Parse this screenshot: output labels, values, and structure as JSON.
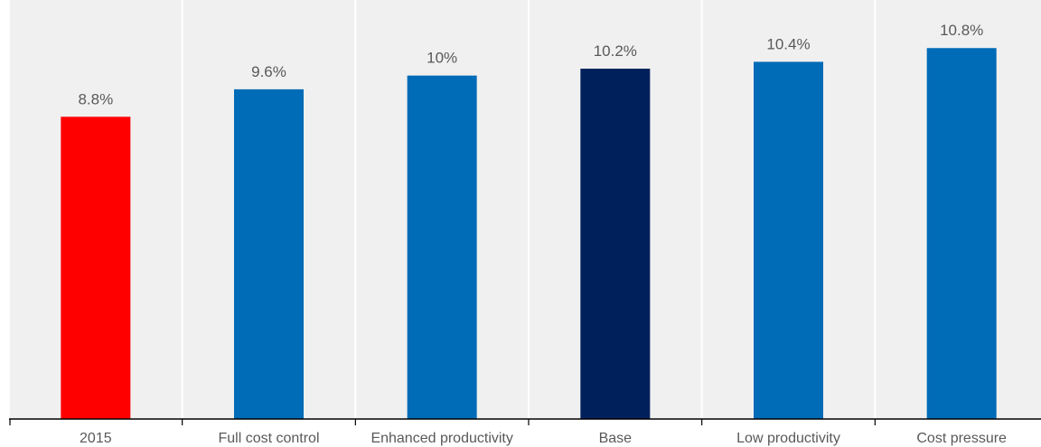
{
  "chart_data": {
    "type": "bar",
    "categories": [
      "2015",
      "Full cost control",
      "Enhanced productivity",
      "Base",
      "Low productivity",
      "Cost pressure"
    ],
    "values": [
      8.8,
      9.6,
      10,
      10.2,
      10.4,
      10.8
    ],
    "value_labels": [
      "8.8%",
      "9.6%",
      "10%",
      "10.2%",
      "10.4%",
      "10.8%"
    ],
    "bar_colors": [
      "#ff0000",
      "#006bb6",
      "#006bb6",
      "#00205b",
      "#006bb6",
      "#006bb6"
    ],
    "background_color": "#f0f0f0",
    "ylim": [
      0,
      12.2
    ],
    "grid": false,
    "title": "",
    "xlabel": "",
    "ylabel": ""
  }
}
